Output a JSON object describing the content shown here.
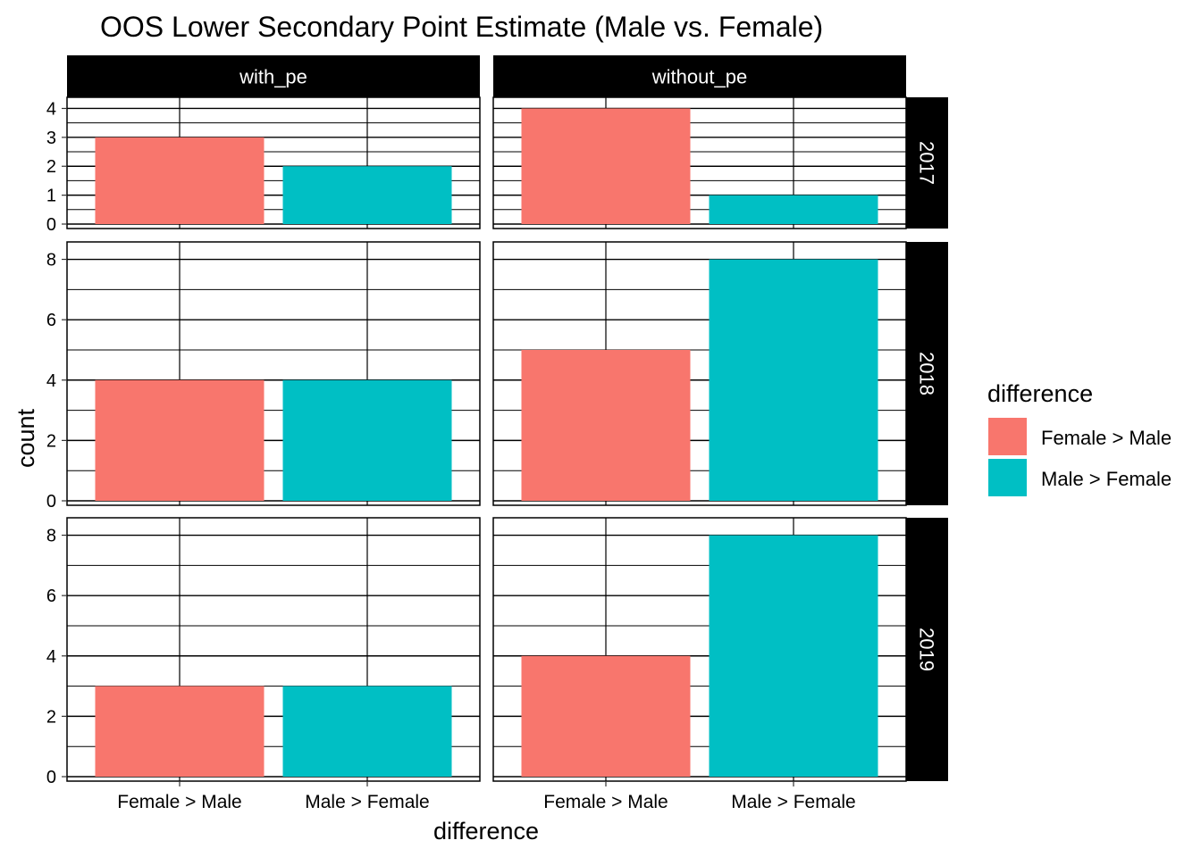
{
  "chart_data": {
    "type": "bar",
    "title": "OOS Lower Secondary Point Estimate (Male vs. Female)",
    "xlabel": "difference",
    "ylabel": "count",
    "categories": [
      "Female > Male",
      "Male > Female"
    ],
    "facet_columns": [
      "with_pe",
      "without_pe"
    ],
    "facet_rows": [
      "2017",
      "2018",
      "2019"
    ],
    "scales": {
      "2017": {
        "ylim": [
          0,
          4.2
        ],
        "ticks": [
          0,
          1,
          2,
          3,
          4
        ],
        "minor": [
          0.5,
          1.5,
          2.5,
          3.5
        ]
      },
      "2018": {
        "ylim": [
          0,
          8.4
        ],
        "ticks": [
          0,
          2,
          4,
          6,
          8
        ],
        "minor": [
          1,
          3,
          5,
          7
        ]
      },
      "2019": {
        "ylim": [
          0,
          8.4
        ],
        "ticks": [
          0,
          2,
          4,
          6,
          8
        ],
        "minor": [
          1,
          3,
          5,
          7
        ]
      }
    },
    "panels": [
      {
        "row": "2017",
        "col": "with_pe",
        "values": [
          3,
          2
        ]
      },
      {
        "row": "2017",
        "col": "without_pe",
        "values": [
          4,
          1
        ]
      },
      {
        "row": "2018",
        "col": "with_pe",
        "values": [
          4,
          4
        ]
      },
      {
        "row": "2018",
        "col": "without_pe",
        "values": [
          5,
          8
        ]
      },
      {
        "row": "2019",
        "col": "with_pe",
        "values": [
          3,
          3
        ]
      },
      {
        "row": "2019",
        "col": "without_pe",
        "values": [
          4,
          8
        ]
      }
    ],
    "legend": {
      "title": "difference",
      "position": "right",
      "entries": [
        {
          "label": "Female > Male",
          "color": "#F8766D"
        },
        {
          "label": "Male > Female",
          "color": "#00BFC4"
        }
      ]
    },
    "grid": true
  }
}
